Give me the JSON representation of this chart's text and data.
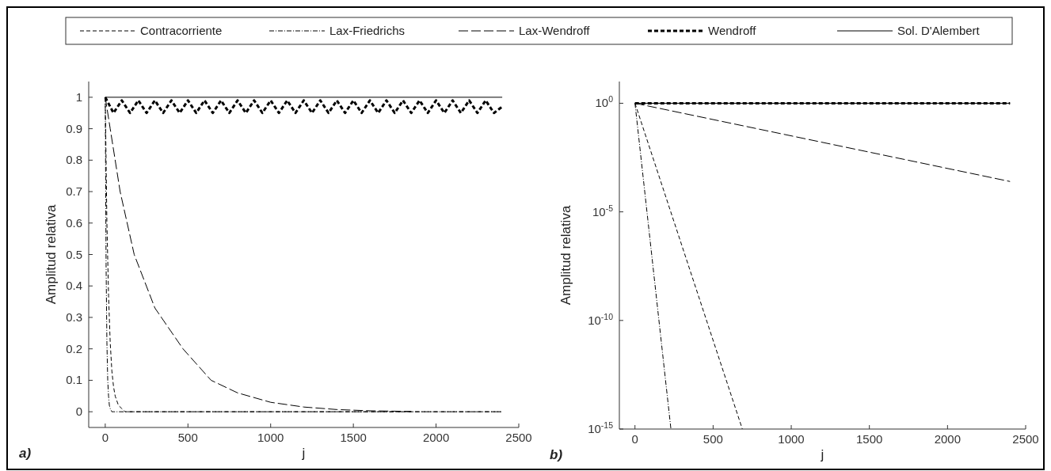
{
  "chart_data": [
    {
      "type": "line",
      "xlabel": "j",
      "ylabel": "Amplitud relativa",
      "annotations": [
        "a)"
      ],
      "legend": "top",
      "xlim": [
        -100,
        2500
      ],
      "xticks": [
        0,
        500,
        1000,
        1500,
        2000,
        2500
      ],
      "ylim": [
        -0.05,
        1.05
      ],
      "yticks": [
        0,
        0.1,
        0.2,
        0.3,
        0.4,
        0.5,
        0.6,
        0.7,
        0.8,
        0.9,
        1
      ],
      "series": [
        {
          "name": "Contracorriente",
          "color": "#000000",
          "line_style": "dashed",
          "x": [
            0,
            10,
            20,
            30,
            40,
            50,
            60,
            80,
            100,
            120,
            2400
          ],
          "values": [
            1,
            0.6,
            0.37,
            0.22,
            0.13,
            0.08,
            0.05,
            0.02,
            0.01,
            0,
            0
          ]
        },
        {
          "name": "Lax-Friedrichs",
          "color": "#000000",
          "line_style": "dashdot",
          "x": [
            0,
            5,
            10,
            15,
            20,
            25,
            30,
            40,
            50,
            2400
          ],
          "values": [
            1,
            0.47,
            0.22,
            0.1,
            0.05,
            0.02,
            0.01,
            0,
            0,
            0
          ]
        },
        {
          "name": "Lax-Wendroff",
          "color": "#000000",
          "line_style": "longdash",
          "x": [
            0,
            30,
            90,
            175,
            300,
            470,
            640,
            800,
            1000,
            1200,
            1400,
            1600,
            1850
          ],
          "values": [
            1,
            0.9,
            0.7,
            0.5,
            0.33,
            0.2,
            0.1,
            0.06,
            0.03,
            0.015,
            0.007,
            0.003,
            0.001
          ]
        },
        {
          "name": "Wendroff",
          "color": "#000000",
          "line_style": "thickdash",
          "x": [
            0,
            50,
            100,
            150,
            200,
            250,
            300,
            350,
            400,
            450,
            500,
            550,
            600,
            650,
            700,
            750,
            800,
            850,
            900,
            950,
            1000,
            1050,
            1100,
            1150,
            1200,
            1250,
            1300,
            1350,
            1400,
            1450,
            1500,
            1550,
            1600,
            1650,
            1700,
            1750,
            1800,
            1850,
            1900,
            1950,
            2000,
            2050,
            2100,
            2150,
            2200,
            2250,
            2300,
            2350,
            2400
          ],
          "values": [
            1,
            0.95,
            0.99,
            0.95,
            0.99,
            0.95,
            0.99,
            0.95,
            0.99,
            0.95,
            0.99,
            0.95,
            0.99,
            0.95,
            0.99,
            0.95,
            0.99,
            0.95,
            0.99,
            0.95,
            0.99,
            0.95,
            0.99,
            0.95,
            0.99,
            0.95,
            0.99,
            0.95,
            0.99,
            0.95,
            0.99,
            0.95,
            0.99,
            0.95,
            0.99,
            0.95,
            0.99,
            0.95,
            0.99,
            0.95,
            0.99,
            0.95,
            0.99,
            0.95,
            0.99,
            0.95,
            0.99,
            0.95,
            0.97
          ]
        },
        {
          "name": "Sol. D'Alembert",
          "color": "#000000",
          "line_style": "solid",
          "x": [
            0,
            2400
          ],
          "values": [
            1,
            1
          ]
        }
      ]
    },
    {
      "type": "line",
      "xlabel": "j",
      "ylabel": "Amplitud relativa",
      "annotations": [
        "b)"
      ],
      "log": "y",
      "xlim": [
        -100,
        2500
      ],
      "xticks": [
        0,
        500,
        1000,
        1500,
        2000,
        2500
      ],
      "ylim": [
        1e-15,
        10
      ],
      "yticks": [
        {
          "value": 1,
          "label": "10$^{0}$"
        },
        {
          "value": 1e-05,
          "label": "10$^{-5}$"
        },
        {
          "value": 1e-10,
          "label": "10$^{-10}$"
        },
        {
          "value": 1e-15,
          "label": "10$^{-15}$"
        }
      ],
      "series": [
        {
          "color": "#000000",
          "line_style": "dashed",
          "x": [
            0,
            687
          ],
          "values": [
            1,
            1e-15
          ]
        },
        {
          "color": "#000000",
          "line_style": "dashdot",
          "x": [
            0,
            230
          ],
          "values": [
            1,
            1e-15
          ]
        },
        {
          "color": "#000000",
          "line_style": "longdash",
          "x": [
            0,
            2400
          ],
          "values": [
            1,
            0.00025
          ]
        },
        {
          "color": "#000000",
          "line_style": "thickdash",
          "x": [
            0,
            2400
          ],
          "values": [
            1,
            1
          ]
        },
        {
          "color": "#000000",
          "line_style": "solid",
          "x": [
            0,
            2400
          ],
          "values": [
            1,
            1
          ]
        }
      ]
    }
  ]
}
